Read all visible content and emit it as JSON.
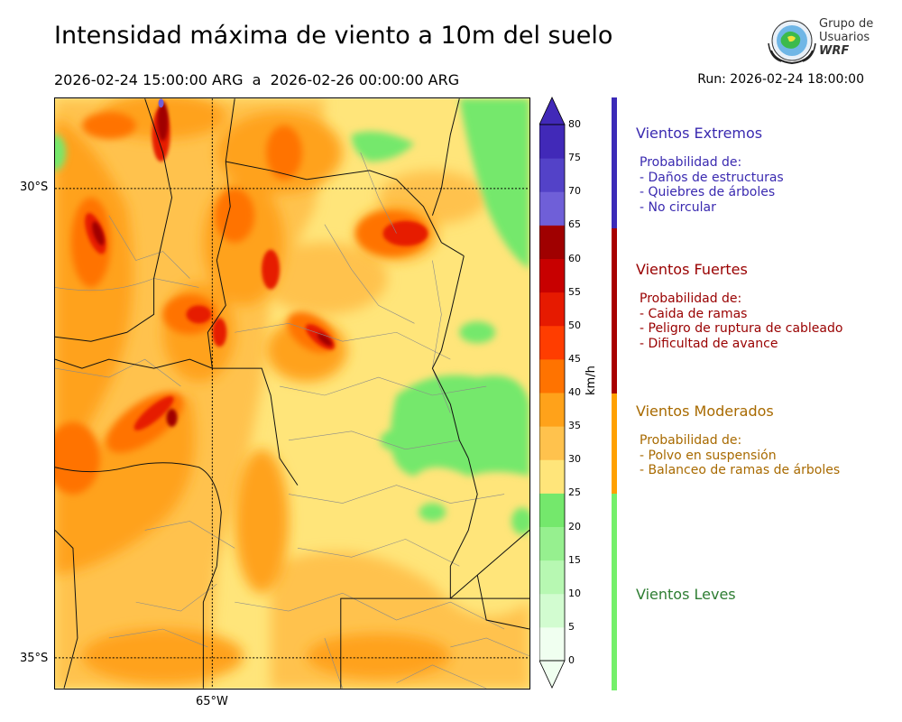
{
  "header": {
    "title": "Intensidad máxima de viento a 10m del suelo",
    "date_range": "2026-02-24 15:00:00 ARG  a  2026-02-26 00:00:00 ARG",
    "run": "Run: 2026-02-24 18:00:00"
  },
  "logo": {
    "line1": "Grupo de",
    "line2": "Usuarios",
    "line3": "WRF"
  },
  "map": {
    "lat_labels": [
      "30°S",
      "35°S"
    ],
    "lon_labels": [
      "65°W"
    ]
  },
  "colorbar": {
    "unit": "km/h",
    "ticks": [
      "0",
      "5",
      "10",
      "15",
      "20",
      "25",
      "30",
      "35",
      "40",
      "45",
      "50",
      "55",
      "60",
      "65",
      "70",
      "75",
      "80"
    ],
    "colors": [
      "#f0fff0",
      "#d2fcd0",
      "#b7f8b2",
      "#96f08f",
      "#74e86c",
      "#ffe57a",
      "#ffc24d",
      "#ffa21a",
      "#ff7300",
      "#ff3d00",
      "#e61a00",
      "#c80000",
      "#a00000",
      "#6f5fd8",
      "#5342c8",
      "#4129b8"
    ]
  },
  "categories": [
    {
      "title": "Vientos Extremos",
      "color": "#3a2ab0",
      "lines": [
        "Probabilidad de:",
        "- Daños de estructuras",
        "- Quiebres de árboles",
        "- No circular"
      ]
    },
    {
      "title": "Vientos Fuertes",
      "color": "#990000",
      "lines": [
        "Probabilidad de:",
        "- Caida de ramas",
        "- Peligro de ruptura de cableado",
        "- Dificultad de avance"
      ]
    },
    {
      "title": "Vientos Moderados",
      "color": "#a86a00",
      "lines": [
        "Probabilidad de:",
        "- Polvo en suspensión",
        "- Balanceo de ramas de árboles"
      ]
    },
    {
      "title": "Vientos Leves",
      "color": "#2e7d32",
      "lines": []
    }
  ],
  "category_bar_colors": [
    "#3b2ab8",
    "#a80000",
    "#ffa000",
    "#74f06a"
  ]
}
